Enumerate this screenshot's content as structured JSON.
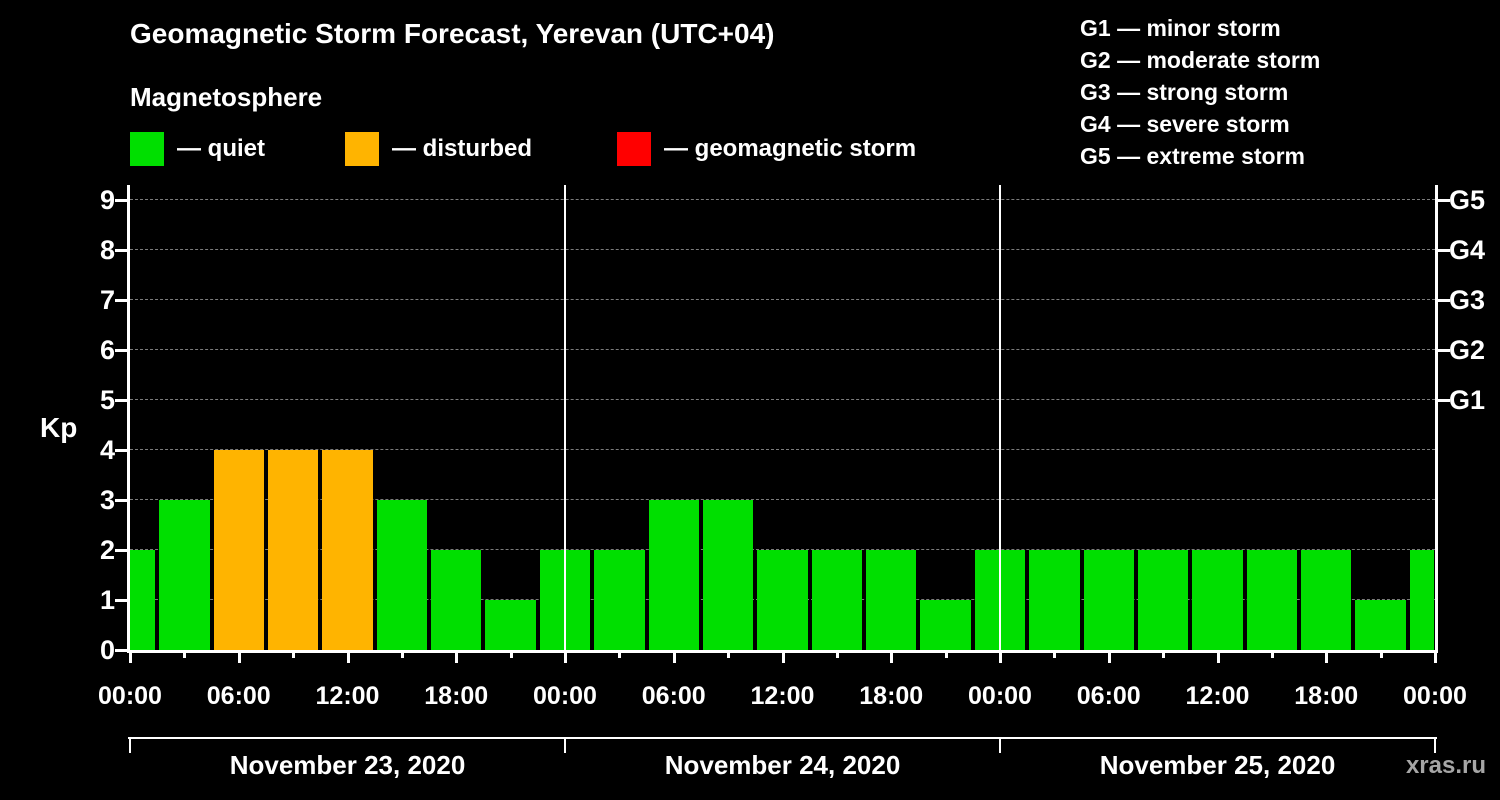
{
  "title": "Geomagnetic Storm Forecast, Yerevan (UTC+04)",
  "subtitle": "Magnetosphere",
  "legend": {
    "items": [
      {
        "label": "— quiet",
        "state": "quiet",
        "color": "#00df00"
      },
      {
        "label": "— disturbed",
        "state": "disturbed",
        "color": "#ffb400"
      },
      {
        "label": "— geomagnetic storm",
        "state": "storm",
        "color": "#ff0000"
      }
    ]
  },
  "g_legend": [
    "G1 — minor storm",
    "G2 — moderate storm",
    "G3 — strong storm",
    "G4 — severe storm",
    "G5 — extreme storm"
  ],
  "watermark": "xras.ru",
  "chart_data": {
    "type": "bar",
    "title": "Geomagnetic Storm Forecast, Yerevan (UTC+04)",
    "ylabel": "Kp",
    "ylim": [
      0,
      9
    ],
    "grid": true,
    "bar_interval_hours": 3,
    "y_ticks": [
      0,
      1,
      2,
      3,
      4,
      5,
      6,
      7,
      8,
      9
    ],
    "x_ticks": [
      {
        "hour": 0,
        "label": "00:00"
      },
      {
        "hour": 6,
        "label": "06:00"
      },
      {
        "hour": 12,
        "label": "12:00"
      },
      {
        "hour": 18,
        "label": "18:00"
      },
      {
        "hour": 24,
        "label": "00:00"
      },
      {
        "hour": 30,
        "label": "06:00"
      },
      {
        "hour": 36,
        "label": "12:00"
      },
      {
        "hour": 42,
        "label": "18:00"
      },
      {
        "hour": 48,
        "label": "00:00"
      },
      {
        "hour": 54,
        "label": "06:00"
      },
      {
        "hour": 60,
        "label": "12:00"
      },
      {
        "hour": 66,
        "label": "18:00"
      },
      {
        "hour": 72,
        "label": "00:00"
      }
    ],
    "right_axis": [
      {
        "kp": 5,
        "label": "G1"
      },
      {
        "kp": 6,
        "label": "G2"
      },
      {
        "kp": 7,
        "label": "G3"
      },
      {
        "kp": 8,
        "label": "G4"
      },
      {
        "kp": 9,
        "label": "G5"
      }
    ],
    "day_boundary_hours": [
      24,
      48
    ],
    "days": [
      "November 23, 2020",
      "November 24, 2020",
      "November 25, 2020"
    ],
    "series_colors": {
      "quiet": "#00df00",
      "disturbed": "#ffb400",
      "storm": "#ff0000"
    },
    "bars": [
      {
        "hour": 0,
        "kp": 2,
        "state": "quiet"
      },
      {
        "hour": 3,
        "kp": 3,
        "state": "quiet"
      },
      {
        "hour": 6,
        "kp": 4,
        "state": "disturbed"
      },
      {
        "hour": 9,
        "kp": 4,
        "state": "disturbed"
      },
      {
        "hour": 12,
        "kp": 4,
        "state": "disturbed"
      },
      {
        "hour": 15,
        "kp": 3,
        "state": "quiet"
      },
      {
        "hour": 18,
        "kp": 2,
        "state": "quiet"
      },
      {
        "hour": 21,
        "kp": 1,
        "state": "quiet"
      },
      {
        "hour": 24,
        "kp": 2,
        "state": "quiet"
      },
      {
        "hour": 27,
        "kp": 2,
        "state": "quiet"
      },
      {
        "hour": 30,
        "kp": 3,
        "state": "quiet"
      },
      {
        "hour": 33,
        "kp": 3,
        "state": "quiet"
      },
      {
        "hour": 36,
        "kp": 2,
        "state": "quiet"
      },
      {
        "hour": 39,
        "kp": 2,
        "state": "quiet"
      },
      {
        "hour": 42,
        "kp": 2,
        "state": "quiet"
      },
      {
        "hour": 45,
        "kp": 1,
        "state": "quiet"
      },
      {
        "hour": 48,
        "kp": 2,
        "state": "quiet"
      },
      {
        "hour": 51,
        "kp": 2,
        "state": "quiet"
      },
      {
        "hour": 54,
        "kp": 2,
        "state": "quiet"
      },
      {
        "hour": 57,
        "kp": 2,
        "state": "quiet"
      },
      {
        "hour": 60,
        "kp": 2,
        "state": "quiet"
      },
      {
        "hour": 63,
        "kp": 2,
        "state": "quiet"
      },
      {
        "hour": 66,
        "kp": 2,
        "state": "quiet"
      },
      {
        "hour": 69,
        "kp": 1,
        "state": "quiet"
      },
      {
        "hour": 72,
        "kp": 2,
        "state": "quiet"
      }
    ]
  }
}
